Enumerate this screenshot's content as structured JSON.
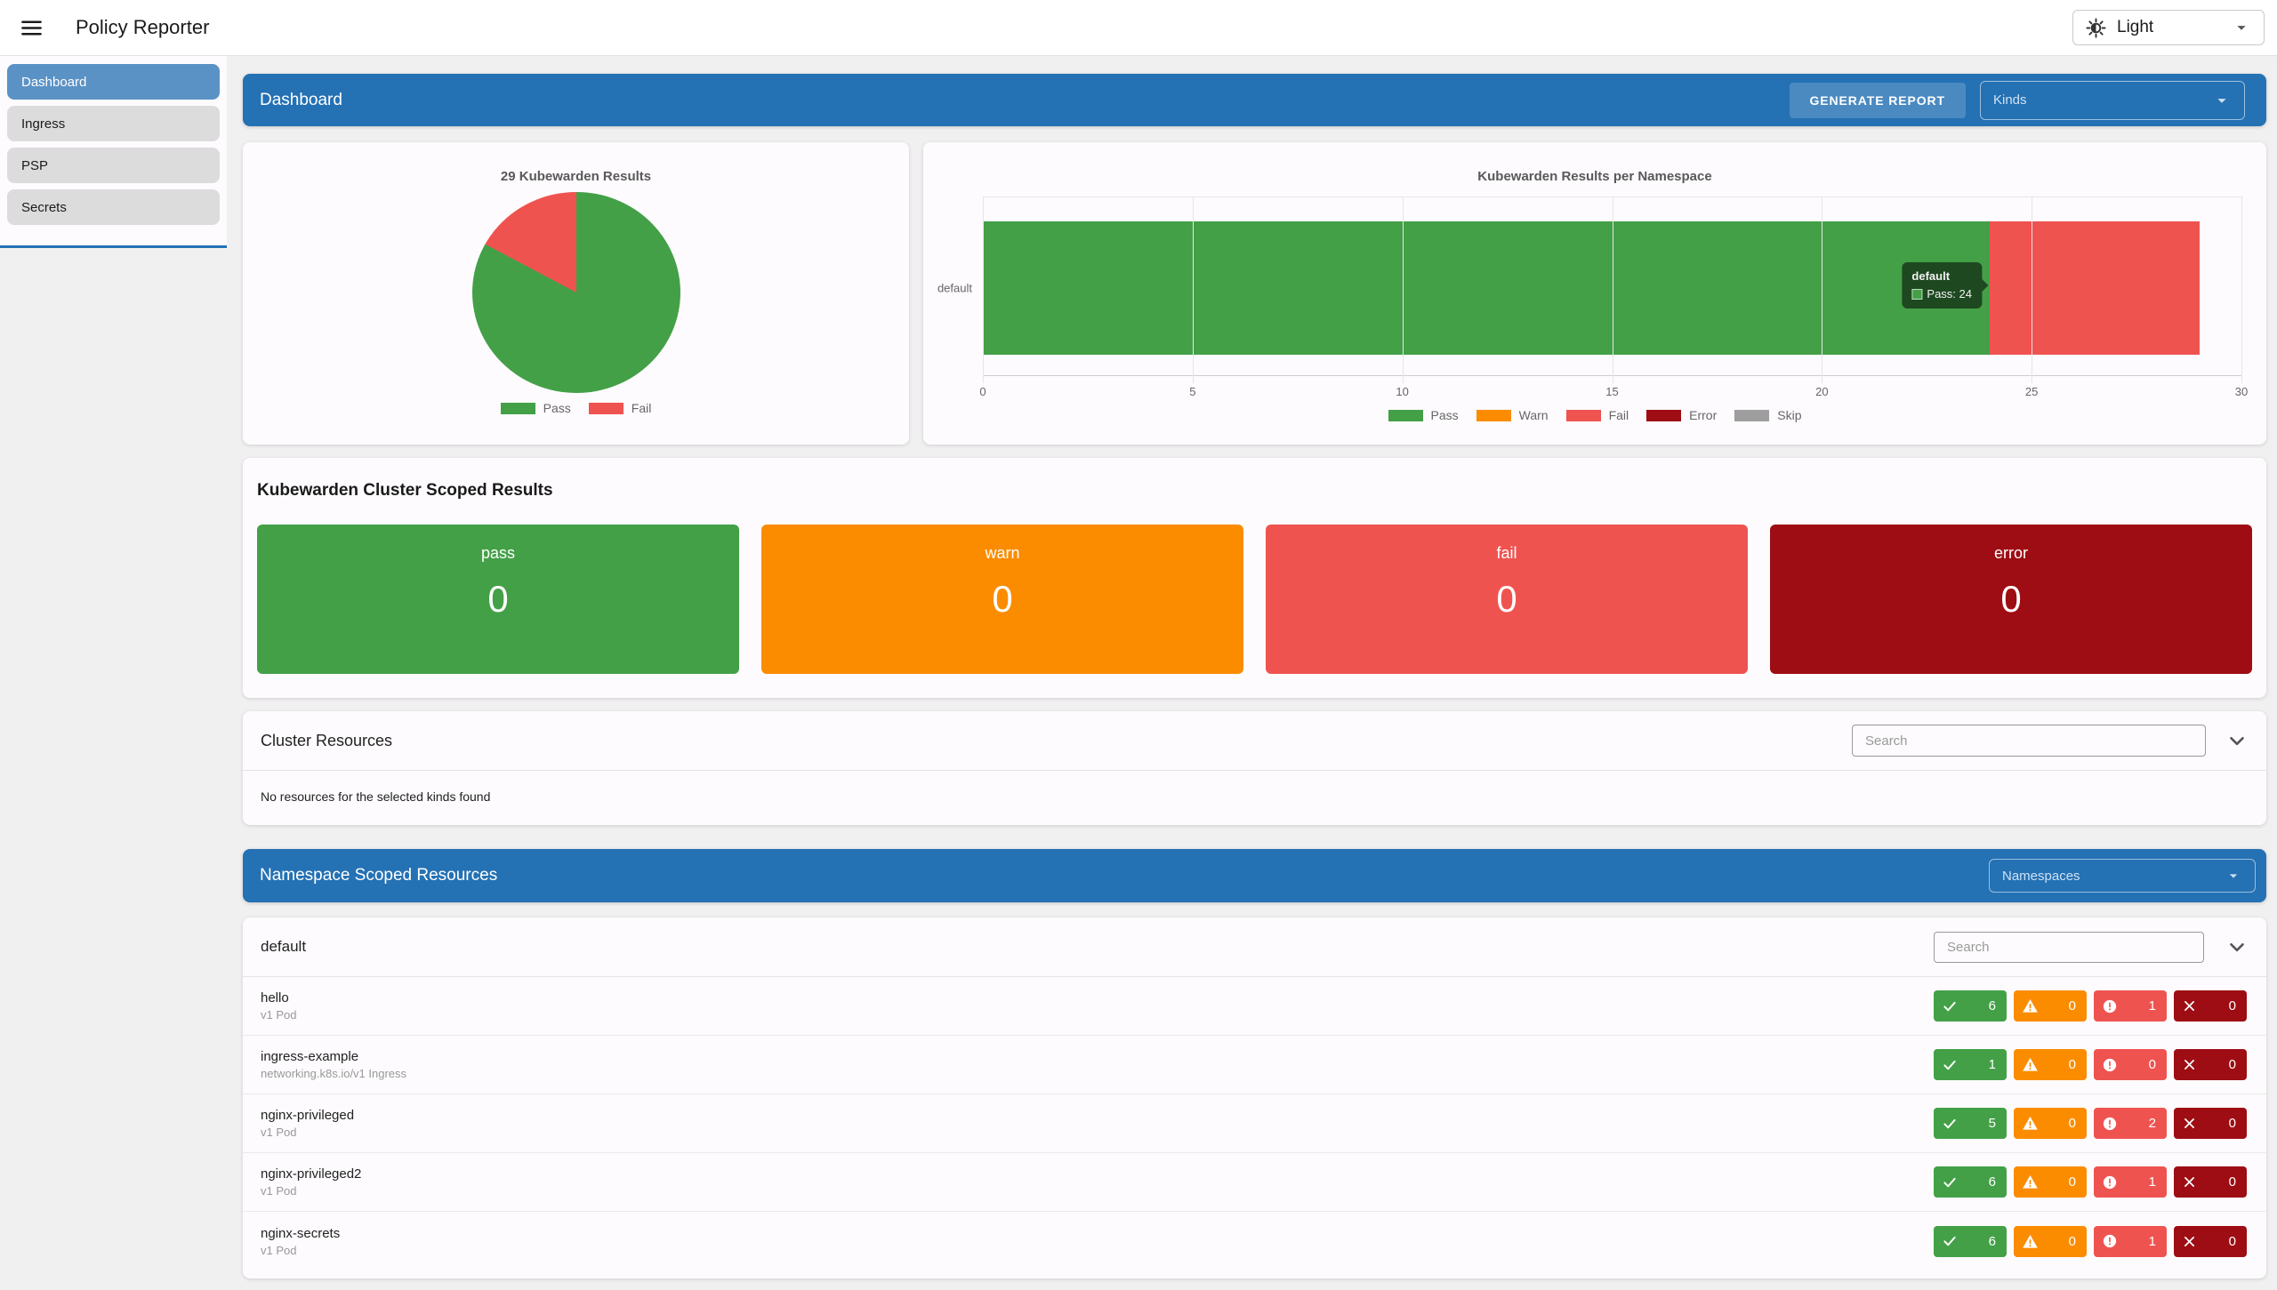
{
  "app": {
    "title": "Policy Reporter",
    "theme_selector": {
      "label": "Light"
    }
  },
  "sidebar": {
    "items": [
      {
        "label": "Dashboard",
        "active": true
      },
      {
        "label": "Ingress",
        "active": false
      },
      {
        "label": "PSP",
        "active": false
      },
      {
        "label": "Secrets",
        "active": false
      }
    ]
  },
  "dashboard": {
    "title": "Dashboard",
    "generate_report": "GENERATE REPORT",
    "kinds": "Kinds"
  },
  "chart_data": [
    {
      "type": "pie",
      "title": "29 Kubewarden Results",
      "labels": [
        "Pass",
        "Fail"
      ],
      "values": [
        24,
        5
      ],
      "colors": [
        "#43a047",
        "#ef5350"
      ],
      "legend_position": "bottom"
    },
    {
      "type": "bar",
      "orientation": "horizontal",
      "stacked": true,
      "title": "Kubewarden Results per Namespace",
      "categories": [
        "default"
      ],
      "series": [
        {
          "name": "Pass",
          "values": [
            24
          ],
          "color": "#43a047"
        },
        {
          "name": "Warn",
          "values": [
            0
          ],
          "color": "#fb8c00"
        },
        {
          "name": "Fail",
          "values": [
            5
          ],
          "color": "#ef5350"
        },
        {
          "name": "Error",
          "values": [
            0
          ],
          "color": "#9e0d13"
        },
        {
          "name": "Skip",
          "values": [
            0
          ],
          "color": "#9e9e9e"
        }
      ],
      "xlim": [
        0,
        30
      ],
      "xticks": [
        0,
        5,
        10,
        15,
        20,
        25,
        30
      ],
      "grid": true,
      "legend_position": "bottom",
      "tooltip": {
        "title": "default",
        "text": "Pass: 24"
      }
    }
  ],
  "cluster_results": {
    "title": "Kubewarden Cluster Scoped Results",
    "cards": [
      {
        "label": "pass",
        "value": "0",
        "color": "#43a047"
      },
      {
        "label": "warn",
        "value": "0",
        "color": "#fb8c00"
      },
      {
        "label": "fail",
        "value": "0",
        "color": "#ef5350"
      },
      {
        "label": "error",
        "value": "0",
        "color": "#9e0d13"
      }
    ]
  },
  "cluster_resources": {
    "title": "Cluster Resources",
    "search_placeholder": "Search",
    "empty_message": "No resources for the selected kinds found"
  },
  "namespace_scoped": {
    "title": "Namespace Scoped Resources",
    "namespaces_label": "Namespaces"
  },
  "namespace_card": {
    "title": "default",
    "search_placeholder": "Search",
    "badge_kinds": [
      {
        "name": "pass",
        "icon": "check-icon",
        "color": "#43a047"
      },
      {
        "name": "warn",
        "icon": "warning-icon",
        "color": "#fb8c00"
      },
      {
        "name": "fail",
        "icon": "exclamation-icon",
        "color": "#ef5350"
      },
      {
        "name": "error",
        "icon": "x-icon",
        "color": "#9e0d13"
      }
    ],
    "rows": [
      {
        "name": "hello",
        "kind": "v1 Pod",
        "counts": [
          6,
          0,
          1,
          0
        ]
      },
      {
        "name": "ingress-example",
        "kind": "networking.k8s.io/v1 Ingress",
        "counts": [
          1,
          0,
          0,
          0
        ]
      },
      {
        "name": "nginx-privileged",
        "kind": "v1 Pod",
        "counts": [
          5,
          0,
          2,
          0
        ]
      },
      {
        "name": "nginx-privileged2",
        "kind": "v1 Pod",
        "counts": [
          6,
          0,
          1,
          0
        ]
      },
      {
        "name": "nginx-secrets",
        "kind": "v1 Pod",
        "counts": [
          6,
          0,
          1,
          0
        ]
      }
    ]
  }
}
